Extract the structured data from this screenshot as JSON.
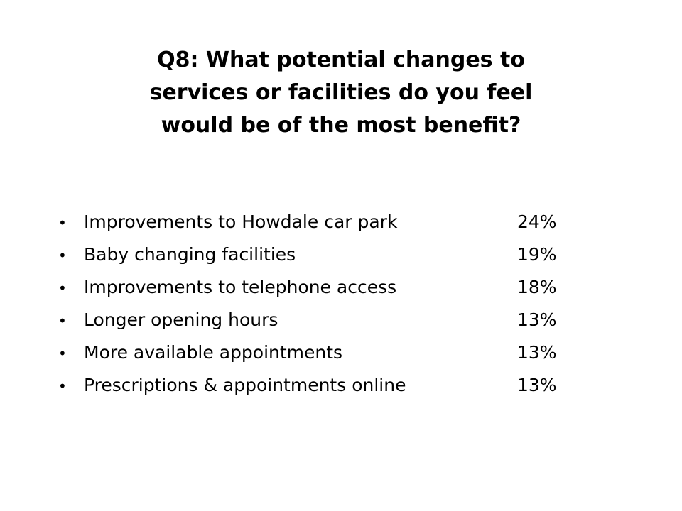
{
  "slide": {
    "title_line1": "Q8:  What potential changes to",
    "title_line2": "services or facilities do you feel",
    "title_line3": "would be of the most benefit?",
    "bullet_symbol": "•",
    "items": [
      {
        "label": "Improvements to Howdale car park",
        "value": "24%"
      },
      {
        "label": "Baby changing facilities",
        "value": "19%"
      },
      {
        "label": "Improvements to telephone access",
        "value": "18%"
      },
      {
        "label": "Longer opening hours",
        "value": "13%"
      },
      {
        "label": "More available appointments",
        "value": "13%"
      },
      {
        "label": "Prescriptions & appointments online",
        "value": "13%"
      }
    ]
  }
}
